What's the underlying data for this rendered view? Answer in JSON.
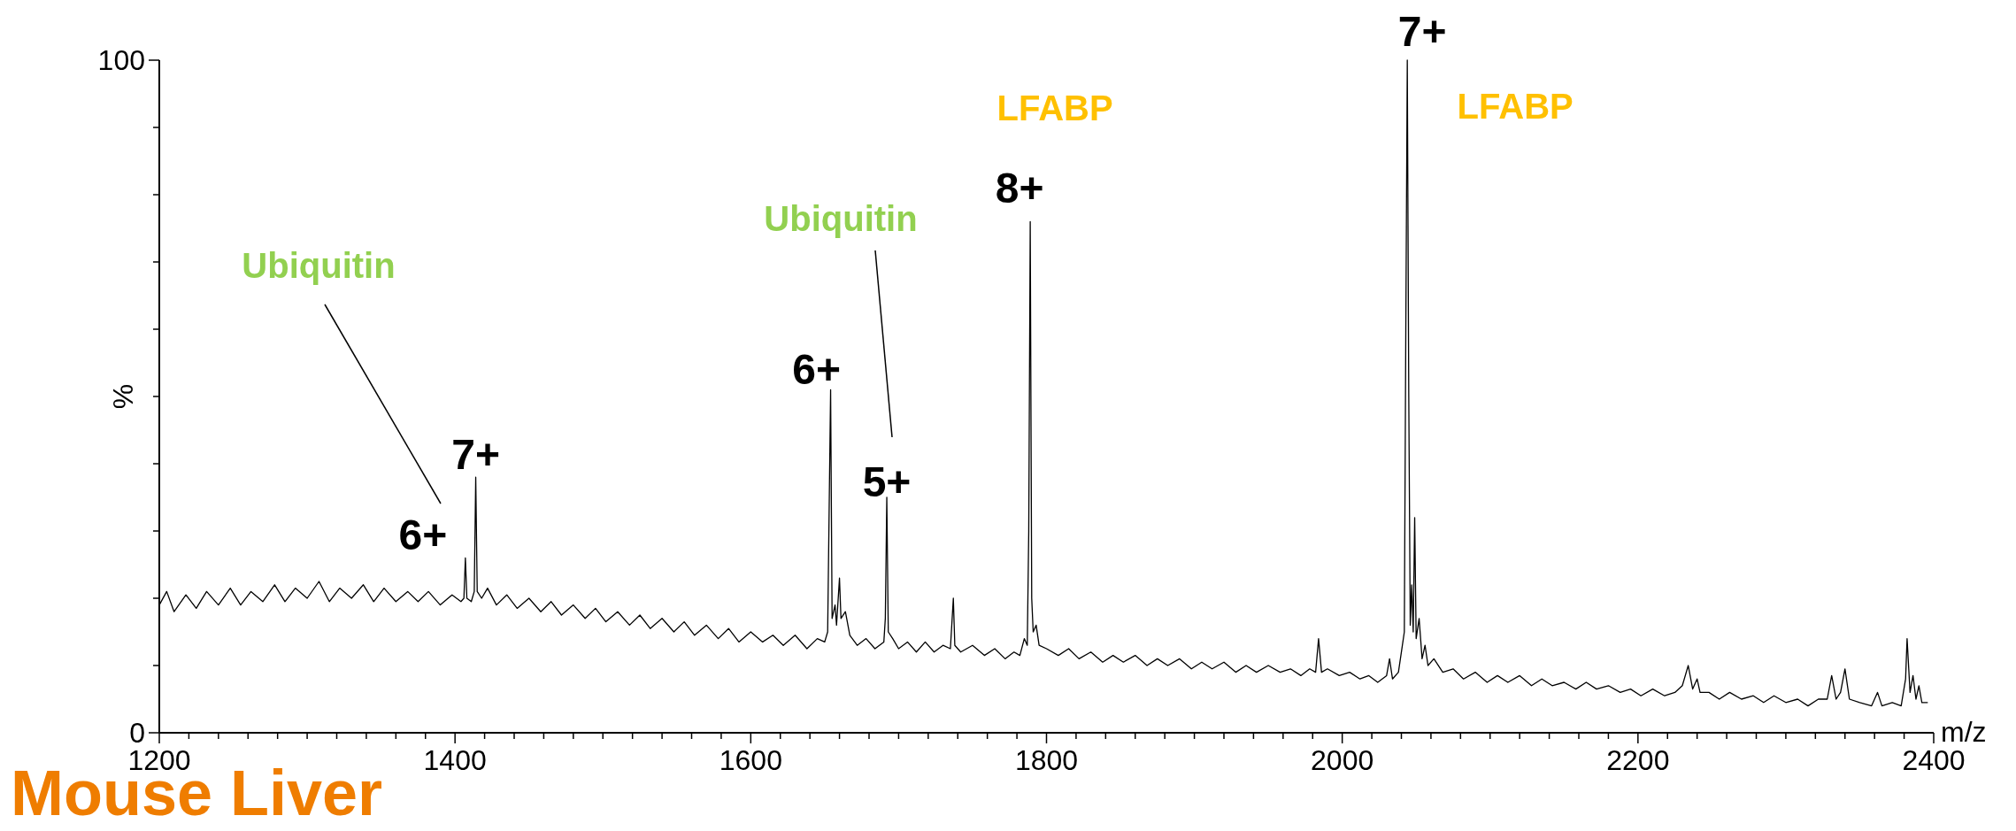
{
  "chart_data": {
    "type": "line",
    "title": "Mouse Liver",
    "xlabel": "m/z",
    "ylabel": "%",
    "xlim": [
      1200,
      2400
    ],
    "ylim": [
      0,
      100
    ],
    "xticks": [
      1200,
      {
        "value": 1220,
        "label": null
      },
      {
        "value": 1240,
        "label": null
      },
      {
        "value": 1260,
        "label": null
      },
      {
        "value": 1280,
        "label": null
      },
      {
        "value": 1300,
        "label": null
      },
      {
        "value": 1320,
        "label": null
      },
      {
        "value": 1340,
        "label": null
      },
      {
        "value": 1360,
        "label": null
      },
      {
        "value": 1380,
        "label": null
      },
      1400,
      {
        "value": 1420,
        "label": null
      },
      {
        "value": 1440,
        "label": null
      },
      {
        "value": 1460,
        "label": null
      },
      {
        "value": 1480,
        "label": null
      },
      {
        "value": 1500,
        "label": null
      },
      {
        "value": 1520,
        "label": null
      },
      {
        "value": 1540,
        "label": null
      },
      {
        "value": 1560,
        "label": null
      },
      {
        "value": 1580,
        "label": null
      },
      1600,
      {
        "value": 1620,
        "label": null
      },
      {
        "value": 1640,
        "label": null
      },
      {
        "value": 1660,
        "label": null
      },
      {
        "value": 1680,
        "label": null
      },
      {
        "value": 1700,
        "label": null
      },
      {
        "value": 1720,
        "label": null
      },
      {
        "value": 1740,
        "label": null
      },
      {
        "value": 1760,
        "label": null
      },
      {
        "value": 1780,
        "label": null
      },
      1800,
      {
        "value": 1820,
        "label": null
      },
      {
        "value": 1840,
        "label": null
      },
      {
        "value": 1860,
        "label": null
      },
      {
        "value": 1880,
        "label": null
      },
      {
        "value": 1900,
        "label": null
      },
      {
        "value": 1920,
        "label": null
      },
      {
        "value": 1940,
        "label": null
      },
      {
        "value": 1960,
        "label": null
      },
      {
        "value": 1980,
        "label": null
      },
      2000,
      {
        "value": 2020,
        "label": null
      },
      {
        "value": 2040,
        "label": null
      },
      {
        "value": 2060,
        "label": null
      },
      {
        "value": 2080,
        "label": null
      },
      {
        "value": 2100,
        "label": null
      },
      {
        "value": 2120,
        "label": null
      },
      {
        "value": 2140,
        "label": null
      },
      {
        "value": 2160,
        "label": null
      },
      {
        "value": 2180,
        "label": null
      },
      2200,
      {
        "value": 2220,
        "label": null
      },
      {
        "value": 2240,
        "label": null
      },
      {
        "value": 2260,
        "label": null
      },
      {
        "value": 2280,
        "label": null
      },
      {
        "value": 2300,
        "label": null
      },
      {
        "value": 2320,
        "label": null
      },
      {
        "value": 2340,
        "label": null
      },
      {
        "value": 2360,
        "label": null
      },
      {
        "value": 2380,
        "label": null
      },
      2400
    ],
    "yticks": [
      0,
      {
        "value": 10,
        "label": null
      },
      {
        "value": 20,
        "label": null
      },
      {
        "value": 30,
        "label": null
      },
      {
        "value": 40,
        "label": null
      },
      {
        "value": 50,
        "label": null
      },
      {
        "value": 60,
        "label": null
      },
      {
        "value": 70,
        "label": null
      },
      {
        "value": 80,
        "label": null
      },
      {
        "value": 90,
        "label": null
      },
      100
    ],
    "annotations": [
      {
        "text": "6+",
        "x": 1407,
        "y": 26
      },
      {
        "text": "7+",
        "x": 1414,
        "y": 38
      },
      {
        "text": "6+",
        "x": 1654,
        "y": 51
      },
      {
        "text": "5+",
        "x": 1692,
        "y": 35
      },
      {
        "text": "8+",
        "x": 1789,
        "y": 76
      },
      {
        "text": "7+",
        "x": 2044,
        "y": 100
      },
      "Ubiquitin",
      "Ubiquitin",
      {
        "text": "LFABP",
        "x": 1789,
        "y": 76
      },
      {
        "text": "LFABP",
        "x": 2044,
        "y": 100
      }
    ],
    "series": [
      {
        "color": "#000000",
        "x": [
          1200,
          1205,
          1210,
          1218,
          1225,
          1232,
          1240,
          1248,
          1255,
          1262,
          1270,
          1278,
          1285,
          1292,
          1300,
          1308,
          1315,
          1322,
          1330,
          1338,
          1345,
          1352,
          1360,
          1368,
          1375,
          1382,
          1390,
          1398,
          1404,
          1406,
          1407,
          1408,
          1411,
          1413,
          1414,
          1415,
          1418,
          1422,
          1428,
          1435,
          1442,
          1450,
          1458,
          1465,
          1472,
          1480,
          1488,
          1495,
          1502,
          1510,
          1518,
          1525,
          1532,
          1540,
          1548,
          1555,
          1562,
          1570,
          1578,
          1585,
          1592,
          1600,
          1608,
          1615,
          1622,
          1630,
          1638,
          1645,
          1650,
          1652,
          1654,
          1655,
          1657,
          1658,
          1660,
          1661,
          1664,
          1667,
          1672,
          1678,
          1684,
          1690,
          1691,
          1692,
          1693,
          1696,
          1700,
          1706,
          1712,
          1718,
          1724,
          1730,
          1735,
          1737,
          1738,
          1742,
          1750,
          1758,
          1765,
          1772,
          1778,
          1782,
          1785,
          1787,
          1788,
          1789,
          1790,
          1791,
          1793,
          1795,
          1800,
          1808,
          1815,
          1822,
          1830,
          1838,
          1845,
          1852,
          1860,
          1868,
          1875,
          1882,
          1890,
          1898,
          1905,
          1912,
          1920,
          1928,
          1935,
          1942,
          1950,
          1958,
          1965,
          1972,
          1978,
          1982,
          1984,
          1986,
          1990,
          1998,
          2005,
          2012,
          2018,
          2024,
          2030,
          2032,
          2034,
          2038,
          2040,
          2042,
          2043,
          2044,
          2045,
          2046,
          2047,
          2048,
          2049,
          2050,
          2052,
          2054,
          2056,
          2058,
          2062,
          2068,
          2075,
          2082,
          2090,
          2098,
          2105,
          2112,
          2120,
          2128,
          2135,
          2142,
          2150,
          2158,
          2165,
          2172,
          2180,
          2188,
          2195,
          2202,
          2210,
          2218,
          2225,
          2230,
          2234,
          2237,
          2240,
          2242,
          2248,
          2255,
          2262,
          2270,
          2278,
          2285,
          2292,
          2300,
          2308,
          2315,
          2322,
          2328,
          2331,
          2334,
          2337,
          2340,
          2343,
          2350,
          2358,
          2362,
          2365,
          2372,
          2378,
          2381,
          2382,
          2384,
          2386,
          2388,
          2390,
          2392,
          2396
        ],
        "values": [
          19,
          21,
          18,
          20.5,
          18.5,
          21,
          19,
          21.5,
          19,
          21,
          19.5,
          22,
          19.5,
          21.5,
          20,
          22.5,
          19.5,
          21.5,
          20,
          22,
          19.5,
          21.5,
          19.5,
          21,
          19.5,
          21,
          19,
          20.5,
          19.5,
          20,
          26,
          20,
          19.5,
          21,
          38,
          21,
          20,
          21.5,
          19,
          20.5,
          18.5,
          20,
          18,
          19.5,
          17.5,
          19,
          17,
          18.5,
          16.5,
          18,
          16,
          17.5,
          15.5,
          17,
          15,
          16.5,
          14.5,
          16,
          14,
          15.5,
          13.5,
          15,
          13.5,
          14.5,
          13,
          14.5,
          12.5,
          14,
          13.5,
          15,
          51,
          17,
          19,
          16,
          23,
          17,
          18,
          14.5,
          13,
          14,
          12.5,
          13.5,
          17,
          35,
          15,
          14,
          12.5,
          13.5,
          12,
          13.5,
          12,
          13,
          12.5,
          20,
          13,
          12,
          13,
          11.5,
          12.5,
          11,
          12,
          11.5,
          14,
          13,
          30,
          76,
          20,
          15,
          16,
          13,
          12.5,
          11.5,
          12.5,
          11,
          12,
          10.5,
          11.5,
          10.5,
          11.5,
          10,
          11,
          10,
          11,
          9.5,
          10.5,
          9.5,
          10.5,
          9,
          10,
          9,
          10,
          9,
          9.5,
          8.5,
          9.5,
          9,
          14,
          9,
          9.5,
          8.5,
          9,
          8,
          8.5,
          7.5,
          8.5,
          11,
          8,
          9,
          12,
          15,
          60,
          100,
          50,
          16,
          22,
          15,
          32,
          14,
          17,
          11,
          13,
          10,
          11,
          9,
          9.5,
          8,
          9,
          7.5,
          8.5,
          7.5,
          8.5,
          7,
          8,
          7,
          7.5,
          6.5,
          7.5,
          6.5,
          7,
          6,
          6.5,
          5.5,
          6.5,
          5.5,
          6,
          7,
          10,
          6.5,
          8,
          6,
          6,
          5,
          6,
          5,
          5.5,
          4.5,
          5.5,
          4.5,
          5,
          4,
          5,
          5,
          8.5,
          5,
          6,
          9.5,
          5,
          4.5,
          4,
          6,
          4,
          4.5,
          4,
          8,
          14,
          6,
          8.5,
          5,
          7,
          4.5,
          4.5
        ]
      }
    ]
  }
}
